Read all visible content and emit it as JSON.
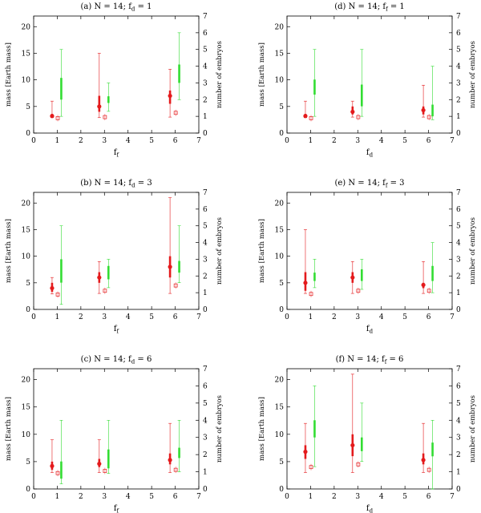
{
  "colors": {
    "mass": "#e41a1c",
    "embryos": "#33dd33",
    "axis": "#000000"
  },
  "chart_data": [
    {
      "type": "scatter",
      "title": "(a) N = 14; f_d = 1",
      "xlabel": "f_f",
      "ylabel": "mass [Earth mass]",
      "y2label": "number of embryos",
      "xlim": [
        0,
        7
      ],
      "ylim": [
        0,
        22
      ],
      "y2lim": [
        0,
        7
      ],
      "xticks": [
        "0",
        "1",
        "2",
        "3",
        "4",
        "5",
        "6",
        "7"
      ],
      "yticks": [
        "0",
        "5",
        "10",
        "15",
        "20"
      ],
      "y2ticks": [
        "0",
        "1",
        "2",
        "3",
        "4",
        "5",
        "6",
        "7"
      ],
      "mass": [
        {
          "x": 0.78,
          "median": 3.2,
          "q1": 2.9,
          "q3": 3.6,
          "min": 2.9,
          "max": 6.0,
          "lowest": 2.8
        },
        {
          "x": 2.78,
          "median": 5.0,
          "q1": 4.0,
          "q3": 7.0,
          "min": 2.9,
          "max": 15.0,
          "lowest": 3.0
        },
        {
          "x": 5.78,
          "median": 7.0,
          "q1": 5.5,
          "q3": 8.0,
          "min": 3.0,
          "max": 12.0,
          "lowest": 3.8
        }
      ],
      "embryos": [
        {
          "x": 1.17,
          "q1": 2.0,
          "q3": 3.3,
          "min": 1.0,
          "max": 5.0
        },
        {
          "x": 3.17,
          "q1": 1.8,
          "q3": 2.2,
          "min": 1.3,
          "max": 3.0
        },
        {
          "x": 6.17,
          "q1": 3.0,
          "q3": 4.1,
          "min": 2.0,
          "max": 6.0
        }
      ]
    },
    {
      "type": "scatter",
      "title": "(d) N = 14; f_f = 1",
      "xlabel": "f_d",
      "ylabel": "mass [Earth mass]",
      "y2label": "number of embryos",
      "xlim": [
        0,
        7
      ],
      "ylim": [
        0,
        22
      ],
      "y2lim": [
        0,
        7
      ],
      "xticks": [
        "0",
        "1",
        "2",
        "3",
        "4",
        "5",
        "6",
        "7"
      ],
      "yticks": [
        "0",
        "5",
        "10",
        "15",
        "20"
      ],
      "y2ticks": [
        "0",
        "1",
        "2",
        "3",
        "4",
        "5",
        "6",
        "7"
      ],
      "mass": [
        {
          "x": 0.78,
          "median": 3.2,
          "q1": 2.9,
          "q3": 3.6,
          "min": 2.9,
          "max": 6.0,
          "lowest": 2.8
        },
        {
          "x": 2.78,
          "median": 4.0,
          "q1": 3.5,
          "q3": 5.0,
          "min": 3.0,
          "max": 6.0,
          "lowest": 3.0
        },
        {
          "x": 5.78,
          "median": 4.3,
          "q1": 3.5,
          "q3": 5.0,
          "min": 3.0,
          "max": 9.0,
          "lowest": 3.0
        }
      ],
      "embryos": [
        {
          "x": 1.17,
          "q1": 2.3,
          "q3": 3.2,
          "min": 1.0,
          "max": 5.0
        },
        {
          "x": 3.17,
          "q1": 1.6,
          "q3": 2.9,
          "min": 1.0,
          "max": 5.0
        },
        {
          "x": 6.17,
          "q1": 1.0,
          "q3": 1.7,
          "min": 0.8,
          "max": 4.0
        }
      ]
    },
    {
      "type": "scatter",
      "title": "(b) N = 14; f_d = 3",
      "xlabel": "f_f",
      "ylabel": "mass [Earth mass]",
      "y2label": "number of embryos",
      "xlim": [
        0,
        7
      ],
      "ylim": [
        0,
        22
      ],
      "y2lim": [
        0,
        7
      ],
      "xticks": [
        "0",
        "1",
        "2",
        "3",
        "4",
        "5",
        "6",
        "7"
      ],
      "yticks": [
        "0",
        "5",
        "10",
        "15",
        "20"
      ],
      "y2ticks": [
        "0",
        "1",
        "2",
        "3",
        "4",
        "5",
        "6",
        "7"
      ],
      "mass": [
        {
          "x": 0.78,
          "median": 4.0,
          "q1": 3.3,
          "q3": 5.0,
          "min": 2.9,
          "max": 6.0,
          "lowest": 2.8
        },
        {
          "x": 2.78,
          "median": 6.0,
          "q1": 5.0,
          "q3": 7.0,
          "min": 3.0,
          "max": 9.0,
          "lowest": 3.5
        },
        {
          "x": 5.78,
          "median": 8.0,
          "q1": 6.0,
          "q3": 10.0,
          "min": 3.0,
          "max": 21.0,
          "lowest": 4.5
        }
      ],
      "embryos": [
        {
          "x": 1.17,
          "q1": 1.6,
          "q3": 3.0,
          "min": 0.3,
          "max": 5.0
        },
        {
          "x": 3.17,
          "q1": 1.8,
          "q3": 2.6,
          "min": 1.3,
          "max": 3.0
        },
        {
          "x": 6.17,
          "q1": 2.2,
          "q3": 2.9,
          "min": 1.6,
          "max": 5.0
        }
      ]
    },
    {
      "type": "scatter",
      "title": "(e) N = 14; f_f = 3",
      "xlabel": "f_d",
      "ylabel": "mass [Earth mass]",
      "y2label": "number of embryos",
      "xlim": [
        0,
        7
      ],
      "ylim": [
        0,
        22
      ],
      "y2lim": [
        0,
        7
      ],
      "xticks": [
        "0",
        "1",
        "2",
        "3",
        "4",
        "5",
        "6",
        "7"
      ],
      "yticks": [
        "0",
        "5",
        "10",
        "15",
        "20"
      ],
      "y2ticks": [
        "0",
        "1",
        "2",
        "3",
        "4",
        "5",
        "6",
        "7"
      ],
      "mass": [
        {
          "x": 0.78,
          "median": 5.0,
          "q1": 3.5,
          "q3": 7.0,
          "min": 3.0,
          "max": 15.0,
          "lowest": 2.9
        },
        {
          "x": 2.78,
          "median": 6.0,
          "q1": 5.0,
          "q3": 7.0,
          "min": 3.0,
          "max": 9.0,
          "lowest": 3.5
        },
        {
          "x": 5.78,
          "median": 4.6,
          "q1": 4.0,
          "q3": 5.0,
          "min": 3.0,
          "max": 9.0,
          "lowest": 3.5
        }
      ],
      "embryos": [
        {
          "x": 1.17,
          "q1": 1.7,
          "q3": 2.2,
          "min": 1.3,
          "max": 3.0
        },
        {
          "x": 3.17,
          "q1": 1.7,
          "q3": 2.4,
          "min": 1.2,
          "max": 3.0
        },
        {
          "x": 6.17,
          "q1": 1.7,
          "q3": 2.6,
          "min": 1.0,
          "max": 4.0
        }
      ]
    },
    {
      "type": "scatter",
      "title": "(c) N = 14; f_d = 6",
      "xlabel": "f_f",
      "ylabel": "mass [Earth mass]",
      "y2label": "number of embryos",
      "xlim": [
        0,
        7
      ],
      "ylim": [
        0,
        22
      ],
      "y2lim": [
        0,
        7
      ],
      "xticks": [
        "0",
        "1",
        "2",
        "3",
        "4",
        "5",
        "6",
        "7"
      ],
      "yticks": [
        "0",
        "5",
        "10",
        "15",
        "20"
      ],
      "y2ticks": [
        "0",
        "1",
        "2",
        "3",
        "4",
        "5",
        "6",
        "7"
      ],
      "mass": [
        {
          "x": 0.78,
          "median": 4.2,
          "q1": 3.5,
          "q3": 5.0,
          "min": 3.0,
          "max": 9.0,
          "lowest": 2.9
        },
        {
          "x": 2.78,
          "median": 4.6,
          "q1": 4.0,
          "q3": 5.5,
          "min": 3.0,
          "max": 9.0,
          "lowest": 3.3
        },
        {
          "x": 5.78,
          "median": 5.3,
          "q1": 4.5,
          "q3": 6.5,
          "min": 3.0,
          "max": 12.0,
          "lowest": 3.5
        }
      ],
      "embryos": [
        {
          "x": 1.17,
          "q1": 0.6,
          "q3": 1.6,
          "min": 0.3,
          "max": 4.0
        },
        {
          "x": 3.17,
          "q1": 1.2,
          "q3": 2.3,
          "min": 0.9,
          "max": 4.0
        },
        {
          "x": 6.17,
          "q1": 1.8,
          "q3": 2.4,
          "min": 1.0,
          "max": 4.0
        }
      ]
    },
    {
      "type": "scatter",
      "title": "(f) N = 14; f_f = 6",
      "xlabel": "f_d",
      "ylabel": "mass [Earth mass]",
      "y2label": "number of embryos",
      "xlim": [
        0,
        7
      ],
      "ylim": [
        0,
        22
      ],
      "y2lim": [
        0,
        7
      ],
      "xticks": [
        "0",
        "1",
        "2",
        "3",
        "4",
        "5",
        "6",
        "7"
      ],
      "yticks": [
        "0",
        "5",
        "10",
        "15",
        "20"
      ],
      "y2ticks": [
        "0",
        "1",
        "2",
        "3",
        "4",
        "5",
        "6",
        "7"
      ],
      "mass": [
        {
          "x": 0.78,
          "median": 6.8,
          "q1": 5.5,
          "q3": 8.0,
          "min": 3.0,
          "max": 12.0,
          "lowest": 4.0
        },
        {
          "x": 2.78,
          "median": 8.0,
          "q1": 6.0,
          "q3": 10.0,
          "min": 3.0,
          "max": 21.0,
          "lowest": 4.5
        },
        {
          "x": 5.78,
          "median": 5.3,
          "q1": 4.5,
          "q3": 6.5,
          "min": 3.0,
          "max": 12.0,
          "lowest": 3.5
        }
      ],
      "embryos": [
        {
          "x": 1.17,
          "q1": 3.0,
          "q3": 4.0,
          "min": 1.3,
          "max": 6.0
        },
        {
          "x": 3.17,
          "q1": 2.2,
          "q3": 3.0,
          "min": 1.6,
          "max": 5.0
        },
        {
          "x": 6.17,
          "q1": 1.9,
          "q3": 2.7,
          "min": 0.0,
          "max": 4.0
        }
      ]
    }
  ]
}
